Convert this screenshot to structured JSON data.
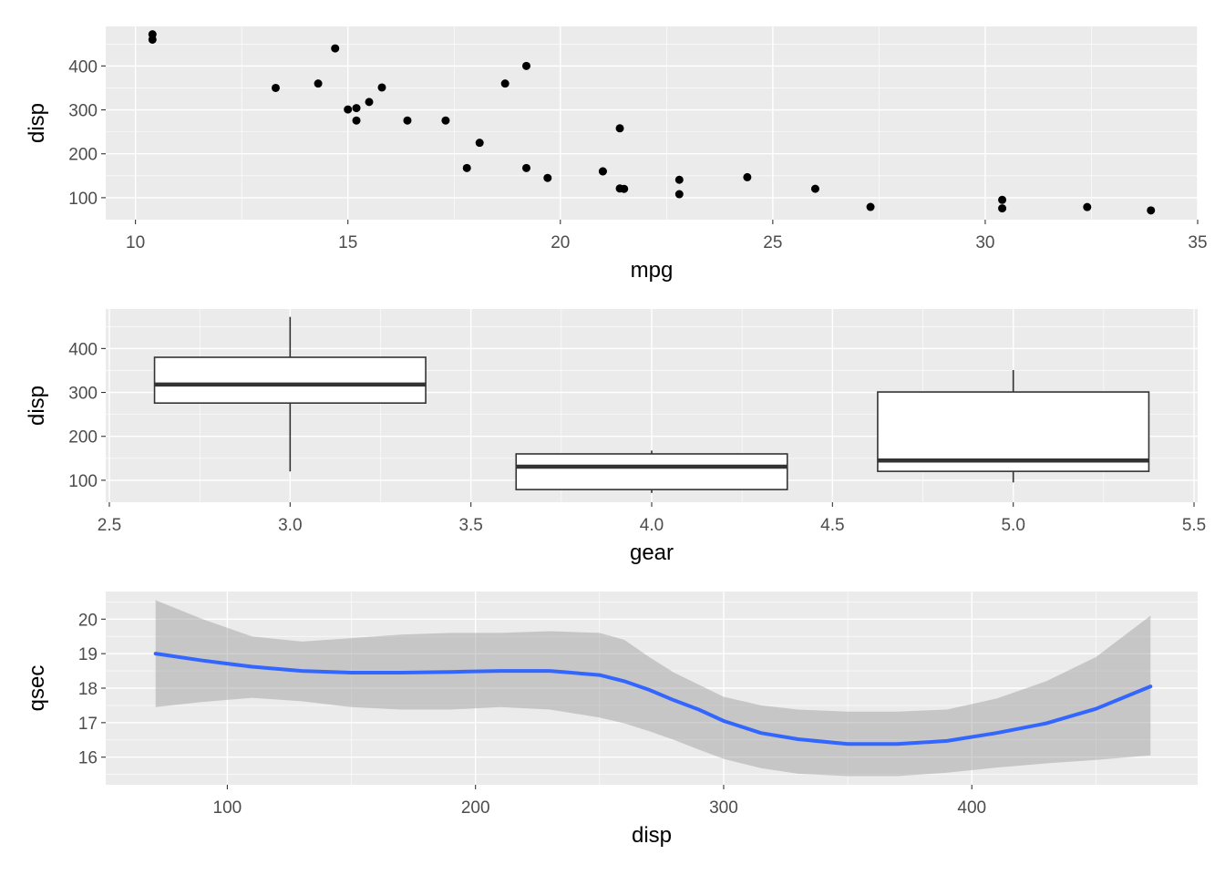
{
  "chart_data": [
    {
      "type": "scatter",
      "xlabel": "mpg",
      "ylabel": "disp",
      "xlim": [
        9.3,
        35.0
      ],
      "ylim": [
        50,
        490
      ],
      "x_ticks": [
        10,
        15,
        20,
        25,
        30,
        35
      ],
      "x_tick_labels": [
        "10",
        "15",
        "20",
        "25",
        "30",
        "35"
      ],
      "y_ticks": [
        100,
        200,
        300,
        400
      ],
      "y_tick_labels": [
        "100",
        "200",
        "300",
        "400"
      ],
      "grid": true,
      "points": [
        {
          "x": 21.0,
          "y": 160
        },
        {
          "x": 21.0,
          "y": 160
        },
        {
          "x": 22.8,
          "y": 108
        },
        {
          "x": 21.4,
          "y": 258
        },
        {
          "x": 18.7,
          "y": 360
        },
        {
          "x": 18.1,
          "y": 225
        },
        {
          "x": 14.3,
          "y": 360
        },
        {
          "x": 24.4,
          "y": 146.7
        },
        {
          "x": 22.8,
          "y": 140.8
        },
        {
          "x": 19.2,
          "y": 167.6
        },
        {
          "x": 17.8,
          "y": 167.6
        },
        {
          "x": 16.4,
          "y": 275.8
        },
        {
          "x": 17.3,
          "y": 275.8
        },
        {
          "x": 15.2,
          "y": 275.8
        },
        {
          "x": 10.4,
          "y": 472
        },
        {
          "x": 10.4,
          "y": 460
        },
        {
          "x": 14.7,
          "y": 440
        },
        {
          "x": 32.4,
          "y": 78.7
        },
        {
          "x": 30.4,
          "y": 75.7
        },
        {
          "x": 33.9,
          "y": 71.1
        },
        {
          "x": 21.5,
          "y": 120.1
        },
        {
          "x": 15.5,
          "y": 318
        },
        {
          "x": 15.2,
          "y": 304
        },
        {
          "x": 13.3,
          "y": 350
        },
        {
          "x": 19.2,
          "y": 400
        },
        {
          "x": 27.3,
          "y": 79
        },
        {
          "x": 26.0,
          "y": 120.3
        },
        {
          "x": 30.4,
          "y": 95.1
        },
        {
          "x": 15.8,
          "y": 351
        },
        {
          "x": 19.7,
          "y": 145
        },
        {
          "x": 15.0,
          "y": 301
        },
        {
          "x": 21.4,
          "y": 121
        }
      ]
    },
    {
      "type": "box",
      "xlabel": "gear",
      "ylabel": "disp",
      "xlim": [
        2.49,
        5.51
      ],
      "ylim": [
        50,
        490
      ],
      "x_ticks": [
        2.5,
        3.0,
        3.5,
        4.0,
        4.5,
        5.0,
        5.5
      ],
      "x_tick_labels": [
        "2.5",
        "3.0",
        "3.5",
        "4.0",
        "4.5",
        "5.0",
        "5.5"
      ],
      "y_ticks": [
        100,
        200,
        300,
        400
      ],
      "y_tick_labels": [
        "100",
        "200",
        "300",
        "400"
      ],
      "grid": true,
      "boxes": [
        {
          "x": 3.0,
          "whisker_low": 120.1,
          "q1": 275.8,
          "median": 318,
          "q3": 380,
          "whisker_high": 472
        },
        {
          "x": 4.0,
          "whisker_low": 71.1,
          "q1": 78.8,
          "median": 130.9,
          "q3": 160,
          "whisker_high": 167.6
        },
        {
          "x": 5.0,
          "whisker_low": 95.1,
          "q1": 120.3,
          "median": 145,
          "q3": 301,
          "whisker_high": 351
        }
      ]
    },
    {
      "type": "line",
      "xlabel": "disp",
      "ylabel": "qsec",
      "xlim": [
        51,
        491
      ],
      "ylim": [
        15.2,
        20.8
      ],
      "x_ticks": [
        100,
        200,
        300,
        400
      ],
      "x_tick_labels": [
        "100",
        "200",
        "300",
        "400"
      ],
      "y_ticks": [
        16,
        17,
        18,
        19,
        20
      ],
      "y_tick_labels": [
        "16",
        "17",
        "18",
        "19",
        "20"
      ],
      "grid": true,
      "series": [
        {
          "x": [
            71.1,
            90,
            110,
            130,
            150,
            170,
            190,
            210,
            230,
            250,
            260,
            270,
            280,
            290,
            300,
            315,
            330,
            350,
            370,
            390,
            410,
            430,
            450,
            472
          ],
          "y": [
            19.0,
            18.8,
            18.62,
            18.5,
            18.45,
            18.45,
            18.47,
            18.5,
            18.5,
            18.38,
            18.2,
            17.95,
            17.65,
            17.38,
            17.05,
            16.7,
            16.52,
            16.38,
            16.38,
            16.47,
            16.7,
            16.98,
            17.4,
            18.05
          ],
          "upper": [
            20.55,
            20.0,
            19.5,
            19.35,
            19.45,
            19.55,
            19.6,
            19.6,
            19.65,
            19.6,
            19.4,
            18.9,
            18.45,
            18.1,
            17.75,
            17.5,
            17.38,
            17.32,
            17.32,
            17.38,
            17.7,
            18.2,
            18.9,
            20.1
          ],
          "lower": [
            17.45,
            17.6,
            17.72,
            17.62,
            17.45,
            17.38,
            17.38,
            17.45,
            17.38,
            17.15,
            16.98,
            16.75,
            16.5,
            16.22,
            15.95,
            15.68,
            15.52,
            15.45,
            15.45,
            15.55,
            15.7,
            15.82,
            15.92,
            16.05
          ]
        }
      ]
    }
  ]
}
